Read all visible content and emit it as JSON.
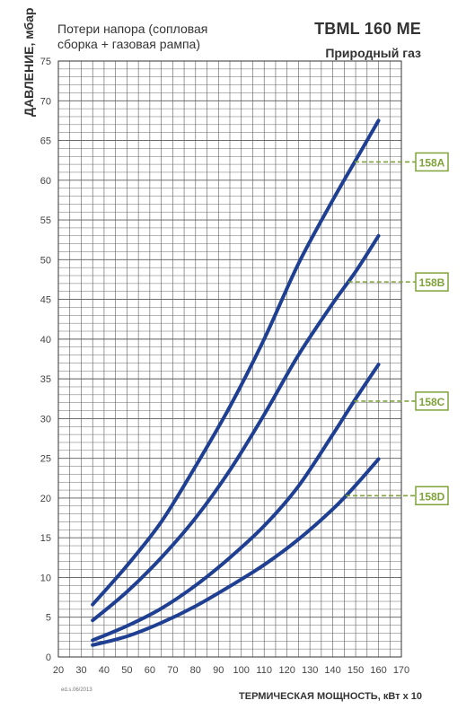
{
  "header": {
    "left_line1": "Потери напора (сопловая",
    "left_line2": "сборка + газовая рампа)",
    "title": "TBML 160 ME",
    "subtitle": "Природный газ"
  },
  "footnote": "ed.s.06/2013",
  "colors": {
    "curve": "#1f3f93",
    "label": "#7fa33a",
    "grid": "#5a5a5a",
    "axis": "#333333"
  },
  "chart_data": {
    "type": "line",
    "title": "TBML 160 ME",
    "subtitle": "Природный газ",
    "xlabel": "ТЕРМИЧЕСКАЯ МОЩНОСТЬ, кВт x 10",
    "ylabel": "ДАВЛЕНИЕ, мбар",
    "xlim": [
      20,
      170
    ],
    "ylim": [
      0,
      75
    ],
    "x_ticks": [
      20,
      30,
      40,
      50,
      60,
      70,
      80,
      90,
      100,
      110,
      120,
      130,
      140,
      150,
      160,
      170
    ],
    "y_ticks": [
      0,
      5,
      10,
      15,
      20,
      25,
      30,
      35,
      40,
      45,
      50,
      55,
      60,
      65,
      70,
      75
    ],
    "grid": true,
    "series": [
      {
        "name": "158A",
        "x": [
          35,
          50,
          65,
          80,
          95,
          110,
          125,
          140,
          150,
          160
        ],
        "y": [
          6.6,
          11.5,
          17,
          24,
          31.5,
          40,
          49.5,
          57.5,
          62.5,
          67.5
        ],
        "label_at_y": 62.3
      },
      {
        "name": "158B",
        "x": [
          35,
          50,
          65,
          80,
          95,
          110,
          125,
          140,
          150,
          160
        ],
        "y": [
          4.6,
          8.2,
          12.5,
          17.5,
          23.5,
          30.5,
          38,
          44.5,
          48.5,
          53
        ],
        "label_at_y": 47.2
      },
      {
        "name": "158C",
        "x": [
          35,
          50,
          65,
          80,
          95,
          110,
          125,
          140,
          150,
          160
        ],
        "y": [
          2.1,
          3.9,
          6.1,
          9,
          12.5,
          16.5,
          21.5,
          28,
          32.5,
          36.8
        ],
        "label_at_y": 32.2
      },
      {
        "name": "158D",
        "x": [
          35,
          50,
          65,
          80,
          95,
          110,
          125,
          140,
          150,
          160
        ],
        "y": [
          1.5,
          2.6,
          4.3,
          6.4,
          8.9,
          11.6,
          14.8,
          18.6,
          21.6,
          24.9
        ],
        "label_at_y": 20.3
      }
    ]
  }
}
